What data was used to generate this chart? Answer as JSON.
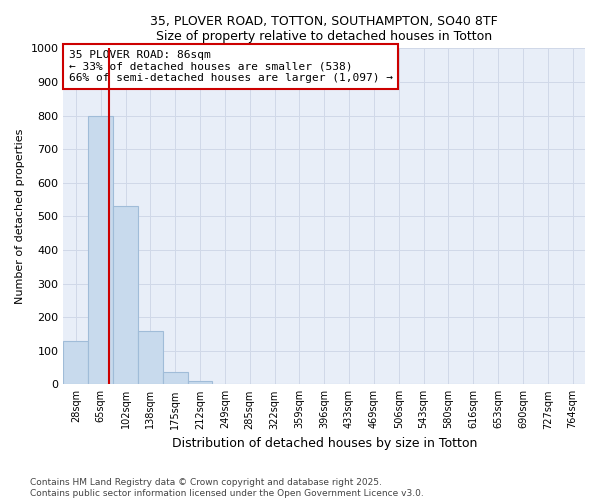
{
  "title1": "35, PLOVER ROAD, TOTTON, SOUTHAMPTON, SO40 8TF",
  "title2": "Size of property relative to detached houses in Totton",
  "xlabel": "Distribution of detached houses by size in Totton",
  "ylabel": "Number of detached properties",
  "footnote1": "Contains HM Land Registry data © Crown copyright and database right 2025.",
  "footnote2": "Contains public sector information licensed under the Open Government Licence v3.0.",
  "bin_labels": [
    "28sqm",
    "65sqm",
    "102sqm",
    "138sqm",
    "175sqm",
    "212sqm",
    "249sqm",
    "285sqm",
    "322sqm",
    "359sqm",
    "396sqm",
    "433sqm",
    "469sqm",
    "506sqm",
    "543sqm",
    "580sqm",
    "616sqm",
    "653sqm",
    "690sqm",
    "727sqm",
    "764sqm"
  ],
  "bar_values": [
    130,
    800,
    530,
    160,
    37,
    10,
    0,
    0,
    0,
    0,
    0,
    0,
    0,
    0,
    0,
    0,
    0,
    0,
    0,
    0,
    0
  ],
  "bar_color": "#c8daed",
  "bar_edge_color": "#a0bcd8",
  "grid_color": "#d0d8e8",
  "plot_bg_color": "#e8eef8",
  "fig_bg_color": "#ffffff",
  "vline_x": 1.35,
  "vline_color": "#cc0000",
  "annotation_text": "35 PLOVER ROAD: 86sqm\n← 33% of detached houses are smaller (538)\n66% of semi-detached houses are larger (1,097) →",
  "annotation_box_color": "#cc0000",
  "annotation_bg_color": "#ffffff",
  "ylim": [
    0,
    1000
  ],
  "yticks": [
    0,
    100,
    200,
    300,
    400,
    500,
    600,
    700,
    800,
    900,
    1000
  ]
}
